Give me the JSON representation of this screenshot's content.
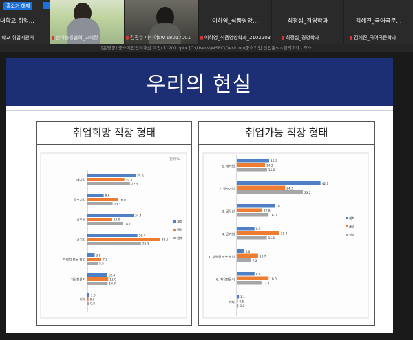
{
  "participants": [
    {
      "name": "대학교 취업...",
      "sub": "학교 취업지원처"
    },
    {
      "name": "한국능률협회_고혜정"
    },
    {
      "name": "김진수 미디어sw 18017001"
    },
    {
      "name": "이하영_식품영양...",
      "sub": "이하영_식품영양학과_21022030"
    },
    {
      "name": "최정섭_경영학과",
      "sub": "최정섭_경영학과"
    },
    {
      "name": "김혜진_국어국문...",
      "sub": "김혜진_국어국문학과"
    }
  ],
  "controls": {
    "pin_label": "홍소거 해제",
    "more_label": "···"
  },
  "path_text": "[운영중] 중소기업인식개선 교안(1120).pptx  [C:\\Users\\WSEC\\Desktop\\중소기업 산업분석~블리져\\] - 조소",
  "slide": {
    "title": "우리의 현실"
  },
  "colors": {
    "s1": "#4e80c8",
    "s2": "#ef7d31",
    "s3": "#a6a6a6",
    "banner": "#1c2f74"
  },
  "chart_data": [
    {
      "type": "bar",
      "title": "취업희망 직장 형태",
      "unit_label": "(단위:%)",
      "categories": [
        "대기업",
        "중소기업",
        "공무원",
        "공기업",
        "자영업 또는 창업",
        "자유전문직",
        "기타"
      ],
      "series": [
        {
          "name": "재학",
          "values": [
            25.5,
            8.6,
            24.4,
            26.4,
            3.8,
            10.4,
            1.0
          ]
        },
        {
          "name": "졸업",
          "values": [
            19.5,
            16.0,
            13.0,
            38.5,
            7.3,
            11.0,
            0.6
          ]
        },
        {
          "name": "합계",
          "values": [
            22.5,
            13.3,
            18.7,
            28.3,
            5.5,
            10.7,
            0.8
          ]
        }
      ]
    },
    {
      "type": "bar",
      "title": "취업가능 직장 형태",
      "categories": [
        "1. 대기업",
        "2. 중소기업",
        "3. 공무원",
        "4. 공기업",
        "5. 자영업 또는 창업",
        "6. 자유전문직",
        "기타"
      ],
      "series": [
        {
          "name": "재학",
          "values": [
            16.3,
            42.1,
            19.1,
            8.9,
            3.6,
            8.9,
            1.1
          ]
        },
        {
          "name": "졸업",
          "values": [
            14.2,
            24.3,
            12.8,
            21.4,
            10.7,
            16.0,
            0.5
          ]
        },
        {
          "name": "합계",
          "values": [
            15.2,
            33.2,
            16.0,
            15.1,
            7.2,
            12.4,
            0.8
          ]
        }
      ]
    }
  ]
}
